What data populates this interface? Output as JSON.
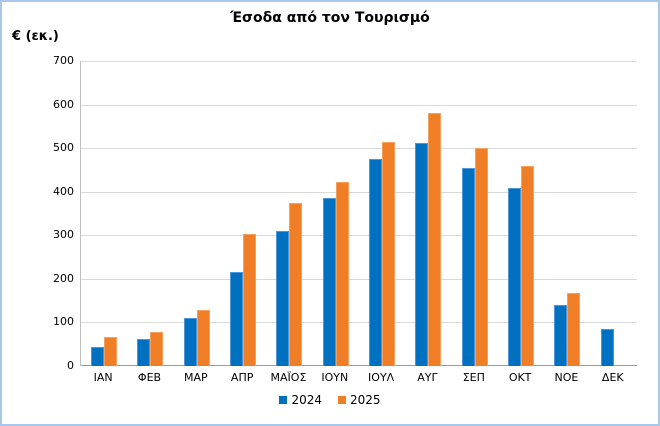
{
  "title": "Έσοδα από τον Τουρισμό",
  "y_axis": {
    "unit_label": "€ (εκ.)",
    "tick_labels": [
      "0",
      "100",
      "200",
      "300",
      "400",
      "500",
      "600",
      "700"
    ]
  },
  "legend": {
    "items": [
      {
        "label": "2024",
        "color": "#0070C0"
      },
      {
        "label": "2025",
        "color": "#F07E26"
      }
    ]
  },
  "colors": {
    "frame_border": "#A9C7E9",
    "gridline": "#D9D9D9",
    "axis_line": "#9B9B9B",
    "plot_left_border": "#BFBFBF",
    "text": "#000000"
  },
  "chart_data": {
    "type": "bar",
    "title": "Έσοδα από τον Τουρισμό",
    "xlabel": "",
    "ylabel": "€ (εκ.)",
    "ylim": [
      0,
      700
    ],
    "ytick_step": 100,
    "grid": "horizontal",
    "legend_position": "bottom",
    "categories": [
      "ΙΑΝ",
      "ΦΕΒ",
      "ΜΑΡ",
      "ΑΠΡ",
      "ΜΑΪΟΣ",
      "ΙΟΥΝ",
      "ΙΟΥΛ",
      "ΑΥΓ",
      "ΣΕΠ",
      "ΟΚΤ",
      "ΝΟΕ",
      "ΔΕΚ"
    ],
    "series": [
      {
        "name": "2024",
        "color": "#0070C0",
        "border_color": "#4F96D8",
        "values": [
          44,
          62,
          110,
          216,
          311,
          386,
          475,
          511,
          454,
          408,
          140,
          86
        ]
      },
      {
        "name": "2025",
        "color": "#F07E26",
        "border_color": "#F5A05F",
        "values": [
          67,
          78,
          128,
          303,
          373,
          422,
          513,
          581,
          500,
          459,
          168,
          null
        ]
      }
    ]
  }
}
